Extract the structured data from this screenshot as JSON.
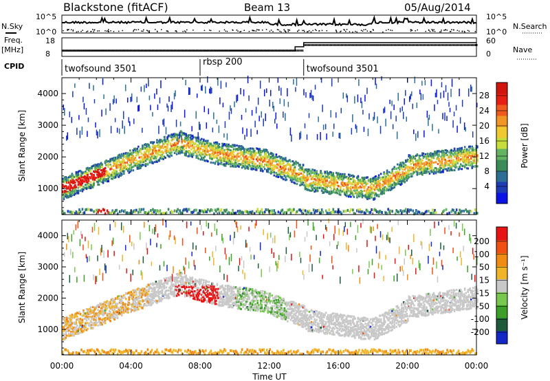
{
  "header": {
    "station": "Blackstone (fitACF)",
    "beam": "Beam 13",
    "date": "05/Aug/2014"
  },
  "ancillary": {
    "nsky_label": "N.Sky",
    "nsky_ticks": [
      "10^5",
      "10^0"
    ],
    "nsearch_label": "N.Search",
    "nsearch_ticks": [
      "10^5",
      "10^0"
    ],
    "freq_label": "Freq.",
    "freq_unit": "[MHz]",
    "freq_ticks": [
      "18",
      "8"
    ],
    "nave_label": "Nave",
    "nave_ticks": [
      "60",
      "0"
    ],
    "cpid_label": "CPID",
    "cpid_segments": [
      {
        "name": "twofsound 3501",
        "start_hour": 0,
        "end_hour": 8
      },
      {
        "name": "rbsp 200",
        "start_hour": 8,
        "end_hour": 14
      },
      {
        "name": "twofsound 3501",
        "start_hour": 14,
        "end_hour": 24
      }
    ]
  },
  "chart_data": [
    {
      "type": "heatmap",
      "title": "",
      "xlabel": "Time UT",
      "ylabel": "Slant Range [km]",
      "xlim": [
        0,
        24
      ],
      "ylim": [
        180,
        4500
      ],
      "xticks": [
        "00:00",
        "04:00",
        "08:00",
        "12:00",
        "16:00",
        "20:00",
        "00:00"
      ],
      "yticks": [
        "1000",
        "2000",
        "3000",
        "4000"
      ],
      "yticks_values": [
        1000,
        2000,
        3000,
        4000
      ],
      "colorbar": {
        "label": "Power [dB]",
        "ticks": [
          "4",
          "8",
          "12",
          "16",
          "20",
          "24",
          "28"
        ],
        "colors": [
          "#0a14e6",
          "#1e3cb4",
          "#2d6e96",
          "#3c8c5a",
          "#64b464",
          "#c8dc3c",
          "#f0c832",
          "#f09628",
          "#f05a1e",
          "#e61e14",
          "#d2140f"
        ]
      }
    },
    {
      "type": "heatmap",
      "title": "",
      "xlabel": "Time UT",
      "ylabel": "Slant Range [km]",
      "xlim": [
        0,
        24
      ],
      "ylim": [
        180,
        4500
      ],
      "xticks": [
        "00:00",
        "04:00",
        "08:00",
        "12:00",
        "16:00",
        "20:00",
        "00:00"
      ],
      "yticks": [
        "1000",
        "2000",
        "3000",
        "4000"
      ],
      "yticks_values": [
        1000,
        2000,
        3000,
        4000
      ],
      "colorbar": {
        "label": "Velocity [m s⁻¹]",
        "ticks": [
          "200",
          "100",
          "50",
          "15",
          "-15",
          "-50",
          "-100",
          "-200"
        ],
        "colors": [
          "#1428c8",
          "#1e5a3c",
          "#3ca028",
          "#78c850",
          "#c8c8c8",
          "#f0b428",
          "#f08c14",
          "#f05014",
          "#e61414"
        ]
      }
    }
  ]
}
